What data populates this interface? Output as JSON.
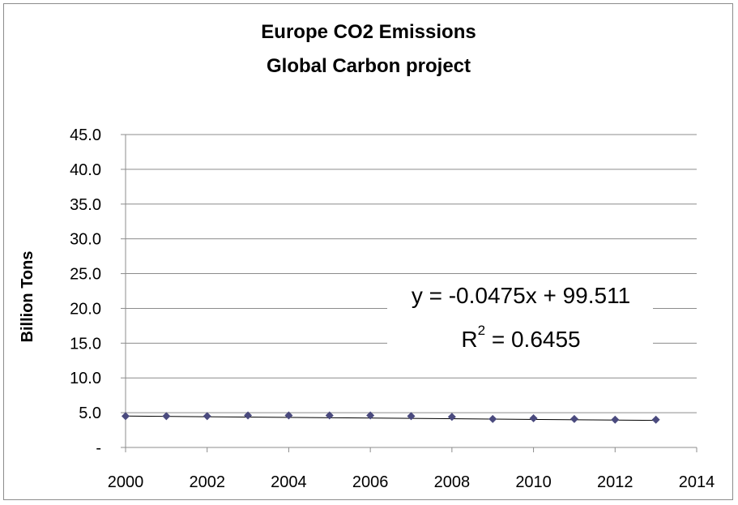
{
  "chart_data": {
    "type": "scatter",
    "title": [
      "Europe CO2 Emissions",
      "Global Carbon project"
    ],
    "ylabel": "Billion Tons",
    "xlabel": "",
    "xlim": [
      2000,
      2014
    ],
    "ylim": [
      0,
      45
    ],
    "x_ticks": [
      "2000",
      "2002",
      "2004",
      "2006",
      "2008",
      "2010",
      "2012",
      "2014"
    ],
    "y_ticks": [
      "-",
      "5.0",
      "10.0",
      "15.0",
      "20.0",
      "25.0",
      "30.0",
      "35.0",
      "40.0",
      "45.0"
    ],
    "grid": true,
    "marker_color": "#4a4a7e",
    "trendline_color": "#000000",
    "series": [
      {
        "x": [
          2000,
          2001,
          2002,
          2003,
          2004,
          2005,
          2006,
          2007,
          2008,
          2009,
          2010,
          2011,
          2012,
          2013
        ],
        "values": [
          4.5,
          4.5,
          4.5,
          4.6,
          4.6,
          4.6,
          4.6,
          4.5,
          4.4,
          4.1,
          4.2,
          4.1,
          4.0,
          4.0
        ]
      }
    ],
    "trendline": {
      "equation": "y = -0.0475x + 99.511",
      "r2_prefix": "R",
      "r2_exp": "2",
      "r2_value": " = 0.6455",
      "slope": -0.0475,
      "intercept": 99.511
    }
  }
}
